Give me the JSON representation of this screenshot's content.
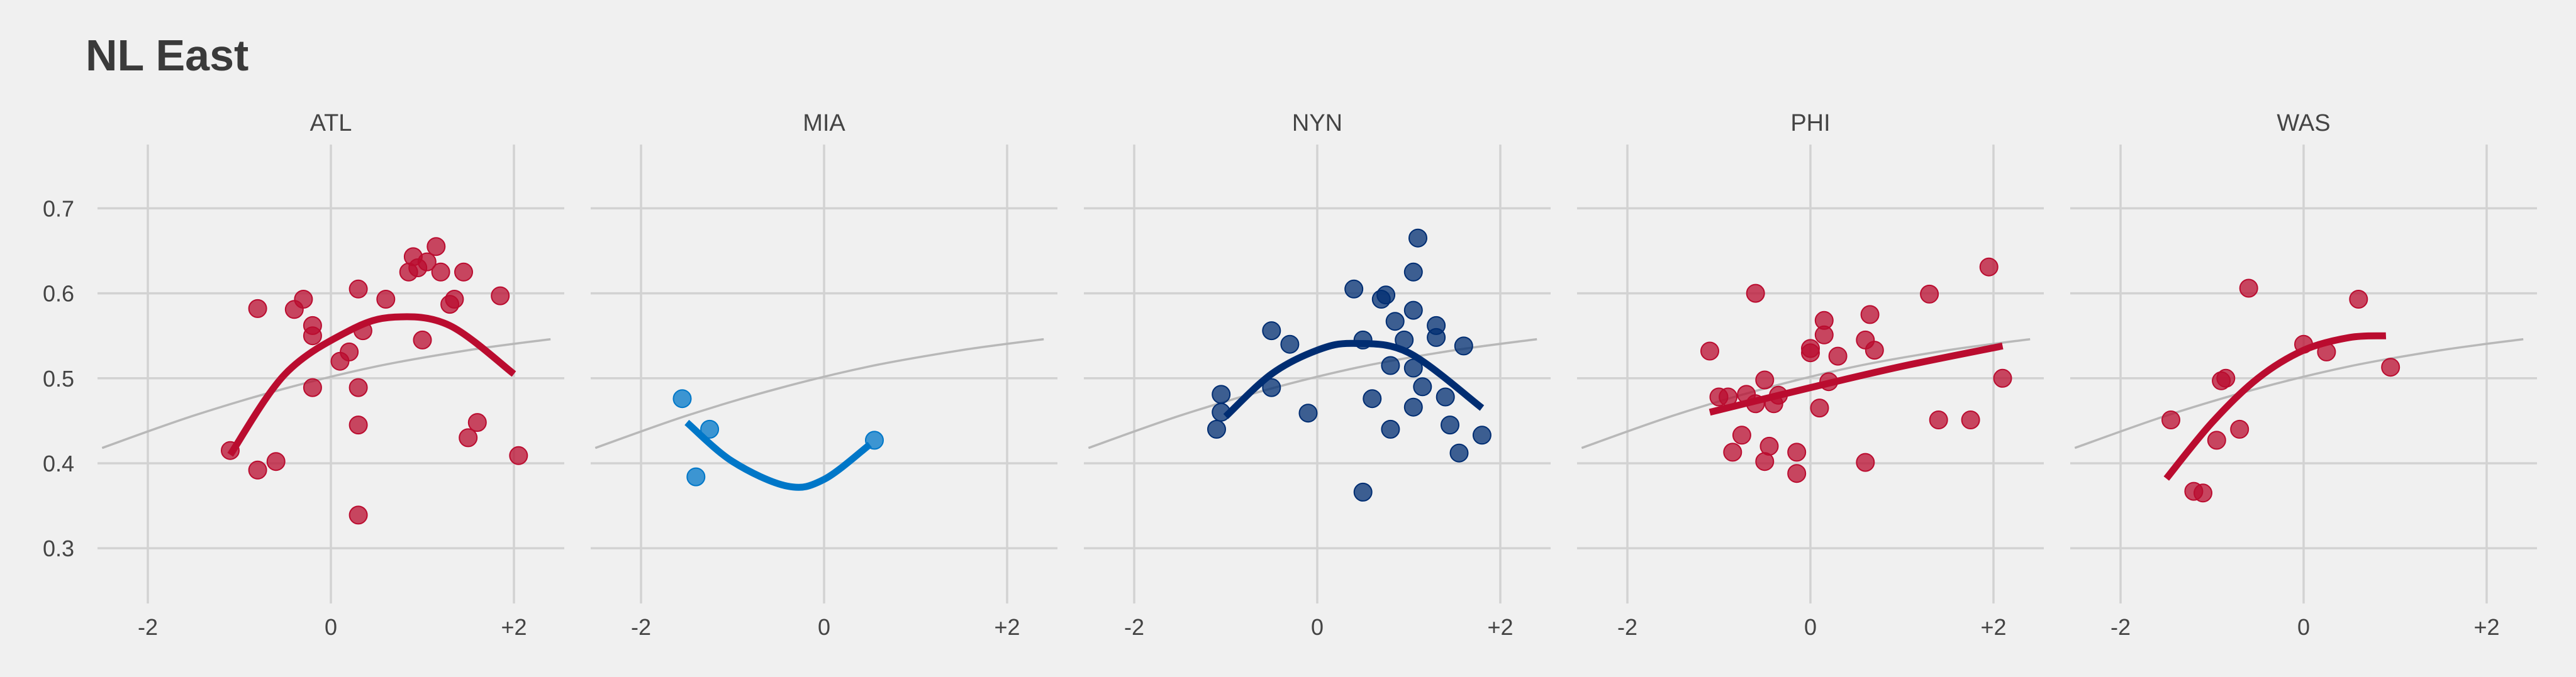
{
  "chart_data": {
    "type": "scatter",
    "title": "NL East",
    "xlabel": "",
    "ylabel": "",
    "xlim": [
      -2.55,
      2.55
    ],
    "ylim": [
      0.235,
      0.775
    ],
    "x_ticks": [
      -2,
      0,
      2
    ],
    "x_tick_labels": [
      "-2",
      "0",
      "+2"
    ],
    "y_ticks": [
      0.3,
      0.4,
      0.5,
      0.6,
      0.7
    ],
    "y_tick_labels": [
      "0.3",
      "0.4",
      "0.5",
      "0.6",
      "0.7"
    ],
    "grid": true,
    "legend": "none",
    "reference_curve": {
      "color": "#b8b8b8",
      "points": [
        [
          -2.5,
          0.418
        ],
        [
          -1.5,
          0.456
        ],
        [
          -0.5,
          0.488
        ],
        [
          0.5,
          0.514
        ],
        [
          1.5,
          0.533
        ],
        [
          2.4,
          0.546
        ]
      ]
    },
    "facets": [
      {
        "label": "ATL",
        "color": "#ba0c2f",
        "fit": [
          [
            -1.1,
            0.41
          ],
          [
            -0.5,
            0.505
          ],
          [
            0.2,
            0.556
          ],
          [
            0.7,
            0.572
          ],
          [
            1.3,
            0.562
          ],
          [
            2.0,
            0.505
          ]
        ],
        "points": [
          [
            -1.1,
            0.415
          ],
          [
            -0.8,
            0.392
          ],
          [
            -0.6,
            0.402
          ],
          [
            -0.8,
            0.582
          ],
          [
            -0.4,
            0.581
          ],
          [
            -0.3,
            0.593
          ],
          [
            -0.2,
            0.562
          ],
          [
            -0.2,
            0.55
          ],
          [
            -0.2,
            0.489
          ],
          [
            0.1,
            0.52
          ],
          [
            0.2,
            0.531
          ],
          [
            0.3,
            0.605
          ],
          [
            0.35,
            0.556
          ],
          [
            0.3,
            0.489
          ],
          [
            0.3,
            0.445
          ],
          [
            0.3,
            0.339
          ],
          [
            0.6,
            0.593
          ],
          [
            0.85,
            0.625
          ],
          [
            0.9,
            0.643
          ],
          [
            0.95,
            0.63
          ],
          [
            1.0,
            0.545
          ],
          [
            1.05,
            0.637
          ],
          [
            1.15,
            0.655
          ],
          [
            1.2,
            0.625
          ],
          [
            1.3,
            0.587
          ],
          [
            1.35,
            0.593
          ],
          [
            1.45,
            0.625
          ],
          [
            1.5,
            0.43
          ],
          [
            1.6,
            0.448
          ],
          [
            1.85,
            0.597
          ],
          [
            2.05,
            0.409
          ]
        ]
      },
      {
        "label": "MIA",
        "color": "#0077c8",
        "fit": [
          [
            -1.5,
            0.448
          ],
          [
            -1.0,
            0.402
          ],
          [
            -0.4,
            0.373
          ],
          [
            0.0,
            0.381
          ],
          [
            0.5,
            0.422
          ]
        ],
        "points": [
          [
            -1.55,
            0.476
          ],
          [
            -1.4,
            0.384
          ],
          [
            -1.25,
            0.44
          ],
          [
            0.55,
            0.427
          ]
        ]
      },
      {
        "label": "NYN",
        "color": "#002d72",
        "fit": [
          [
            -1.0,
            0.455
          ],
          [
            -0.5,
            0.505
          ],
          [
            0.0,
            0.533
          ],
          [
            0.4,
            0.541
          ],
          [
            1.0,
            0.53
          ],
          [
            1.8,
            0.465
          ]
        ],
        "points": [
          [
            -1.1,
            0.44
          ],
          [
            -1.05,
            0.46
          ],
          [
            -1.05,
            0.481
          ],
          [
            -0.5,
            0.489
          ],
          [
            -0.5,
            0.556
          ],
          [
            -0.3,
            0.54
          ],
          [
            -0.1,
            0.459
          ],
          [
            0.4,
            0.605
          ],
          [
            0.5,
            0.545
          ],
          [
            0.5,
            0.366
          ],
          [
            0.6,
            0.476
          ],
          [
            0.7,
            0.593
          ],
          [
            0.75,
            0.598
          ],
          [
            0.85,
            0.567
          ],
          [
            0.8,
            0.515
          ],
          [
            0.8,
            0.44
          ],
          [
            0.95,
            0.545
          ],
          [
            1.05,
            0.625
          ],
          [
            1.05,
            0.58
          ],
          [
            1.05,
            0.512
          ],
          [
            1.05,
            0.466
          ],
          [
            1.1,
            0.665
          ],
          [
            1.15,
            0.49
          ],
          [
            1.3,
            0.562
          ],
          [
            1.3,
            0.548
          ],
          [
            1.4,
            0.478
          ],
          [
            1.45,
            0.445
          ],
          [
            1.55,
            0.412
          ],
          [
            1.6,
            0.538
          ],
          [
            1.8,
            0.433
          ]
        ]
      },
      {
        "label": "PHI",
        "color": "#ba0c2f",
        "fit": [
          [
            -1.1,
            0.46
          ],
          [
            0.0,
            0.489
          ],
          [
            1.0,
            0.514
          ],
          [
            2.1,
            0.538
          ]
        ],
        "points": [
          [
            -1.1,
            0.532
          ],
          [
            -0.9,
            0.478
          ],
          [
            -1.0,
            0.478
          ],
          [
            -0.85,
            0.413
          ],
          [
            -0.75,
            0.433
          ],
          [
            -0.7,
            0.481
          ],
          [
            -0.6,
            0.6
          ],
          [
            -0.6,
            0.47
          ],
          [
            -0.5,
            0.402
          ],
          [
            -0.5,
            0.498
          ],
          [
            -0.45,
            0.42
          ],
          [
            -0.4,
            0.47
          ],
          [
            -0.35,
            0.48
          ],
          [
            -0.15,
            0.413
          ],
          [
            -0.15,
            0.388
          ],
          [
            0.0,
            0.535
          ],
          [
            0.0,
            0.53
          ],
          [
            0.1,
            0.465
          ],
          [
            0.15,
            0.551
          ],
          [
            0.15,
            0.568
          ],
          [
            0.2,
            0.496
          ],
          [
            0.3,
            0.526
          ],
          [
            0.6,
            0.401
          ],
          [
            0.6,
            0.545
          ],
          [
            0.65,
            0.575
          ],
          [
            0.7,
            0.533
          ],
          [
            1.3,
            0.599
          ],
          [
            1.4,
            0.451
          ],
          [
            1.75,
            0.451
          ],
          [
            1.95,
            0.631
          ],
          [
            2.1,
            0.5
          ]
        ]
      },
      {
        "label": "WAS",
        "color": "#ba0c2f",
        "fit": [
          [
            -1.5,
            0.382
          ],
          [
            -1.0,
            0.448
          ],
          [
            -0.5,
            0.5
          ],
          [
            0.0,
            0.533
          ],
          [
            0.5,
            0.548
          ],
          [
            0.9,
            0.55
          ]
        ],
        "points": [
          [
            -1.45,
            0.451
          ],
          [
            -1.2,
            0.367
          ],
          [
            -1.1,
            0.365
          ],
          [
            -0.95,
            0.427
          ],
          [
            -0.9,
            0.497
          ],
          [
            -0.85,
            0.5
          ],
          [
            -0.7,
            0.44
          ],
          [
            -0.6,
            0.606
          ],
          [
            0.0,
            0.54
          ],
          [
            0.25,
            0.531
          ],
          [
            0.6,
            0.593
          ],
          [
            0.95,
            0.513
          ]
        ]
      }
    ]
  }
}
